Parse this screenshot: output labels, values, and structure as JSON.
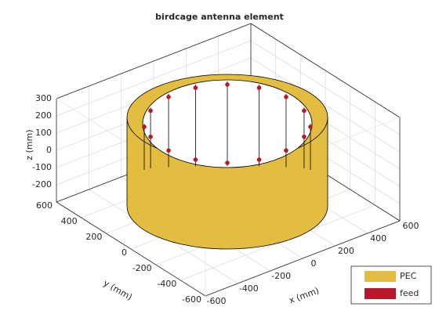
{
  "chart_data": {
    "type": "antenna-3d",
    "title": "birdcage antenna element",
    "xlabel": "x (mm)",
    "ylabel": "y (mm)",
    "zlabel": "z (mm)",
    "xlim": [
      -600,
      600
    ],
    "ylim": [
      -600,
      600
    ],
    "zlim": [
      -300,
      300
    ],
    "xticks": [
      -600,
      -400,
      -200,
      0,
      200,
      400,
      600
    ],
    "yticks": [
      -600,
      -400,
      -200,
      0,
      200,
      400,
      600
    ],
    "zticks": [
      -200,
      -100,
      0,
      100,
      200,
      300
    ],
    "grid": true,
    "legend": [
      {
        "name": "PEC",
        "color": "#e3bd40"
      },
      {
        "name": "feed",
        "color": "#b51a2b"
      }
    ]
  }
}
